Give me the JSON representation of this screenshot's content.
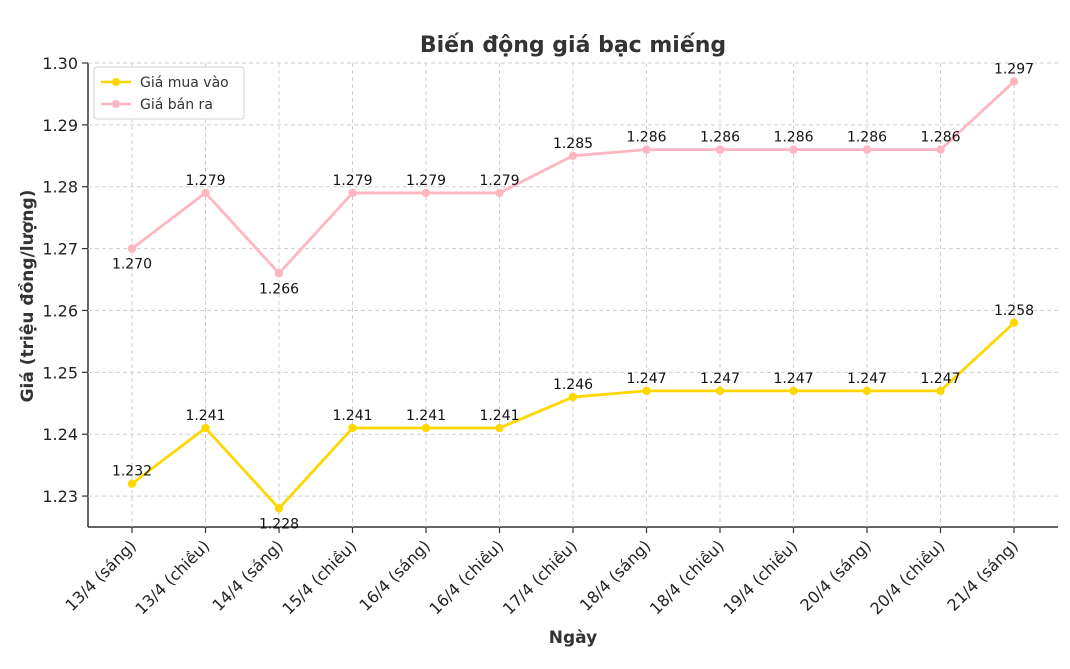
{
  "chart_data": {
    "type": "line",
    "title": "Biến động giá bạc miếng",
    "xlabel": "Ngày",
    "ylabel": "Giá (triệu đồng/lượng)",
    "ylim": [
      1.225,
      1.3
    ],
    "yticks": [
      "1.23",
      "1.24",
      "1.25",
      "1.26",
      "1.27",
      "1.28",
      "1.29",
      "1.30"
    ],
    "grid": true,
    "legend_position": "top-left",
    "categories": [
      "13/4 (sáng)",
      "13/4 (chiều)",
      "14/4 (sáng)",
      "15/4 (chiều)",
      "16/4 (sáng)",
      "16/4 (chiều)",
      "17/4 (chiều)",
      "18/4 (sáng)",
      "18/4 (chiều)",
      "19/4 (chiều)",
      "20/4 (sáng)",
      "20/4 (chiều)",
      "21/4 (sáng)"
    ],
    "series": [
      {
        "name": "Giá mua vào",
        "color": "#FFD700",
        "values": [
          1.232,
          1.241,
          1.228,
          1.241,
          1.241,
          1.241,
          1.246,
          1.247,
          1.247,
          1.247,
          1.247,
          1.247,
          1.258
        ],
        "labels": [
          "1.232",
          "1.241",
          "1.228",
          "1.241",
          "1.241",
          "1.241",
          "1.246",
          "1.247",
          "1.247",
          "1.247",
          "1.247",
          "1.247",
          "1.258"
        ]
      },
      {
        "name": "Giá bán ra",
        "color": "#FFB6C1",
        "values": [
          1.27,
          1.279,
          1.266,
          1.279,
          1.279,
          1.279,
          1.285,
          1.286,
          1.286,
          1.286,
          1.286,
          1.286,
          1.297
        ],
        "labels": [
          "1.270",
          "1.279",
          "1.266",
          "1.279",
          "1.279",
          "1.279",
          "1.285",
          "1.286",
          "1.286",
          "1.286",
          "1.286",
          "1.286",
          "1.297"
        ]
      }
    ]
  }
}
